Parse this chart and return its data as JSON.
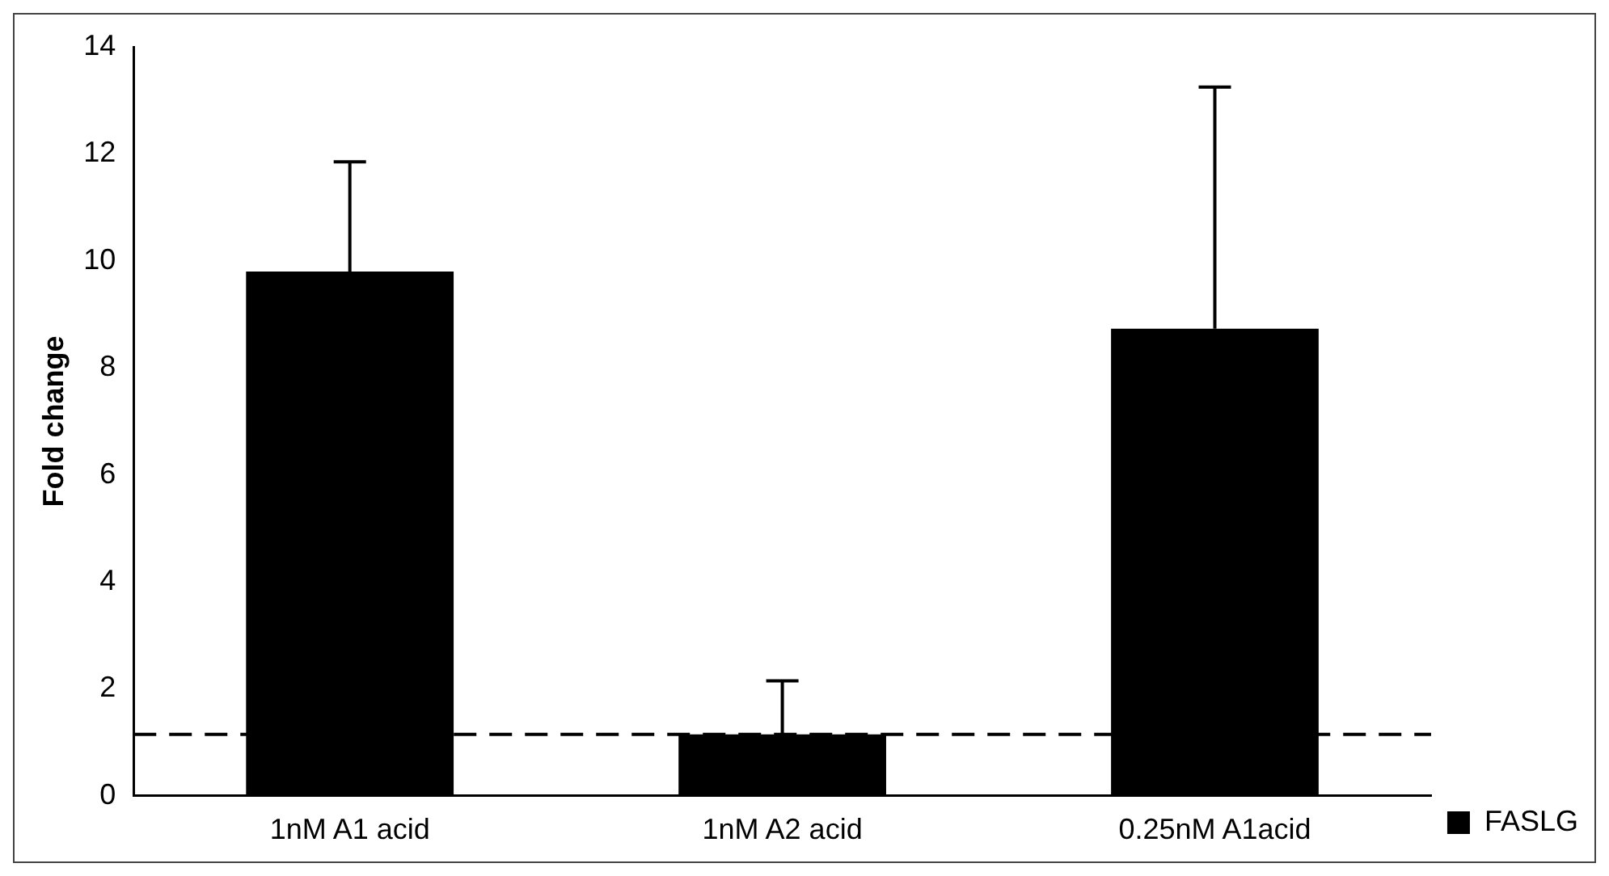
{
  "chart_data": {
    "type": "bar",
    "ylabel": "Fold change",
    "categories": [
      "1nM A1 acid",
      "1nM A2 acid",
      "0.25nM A1acid"
    ],
    "series": [
      {
        "name": "FASLG",
        "color": "#000000",
        "values": [
          9.8,
          1.15,
          8.73
        ],
        "errors": [
          [
            9.8,
            11.85
          ],
          [
            1.15,
            2.15
          ],
          [
            8.73,
            13.25
          ]
        ]
      }
    ],
    "ylim": [
      0,
      14
    ],
    "yticks": [
      0,
      2,
      4,
      6,
      8,
      10,
      12,
      14
    ],
    "grid": false,
    "legend": "bottom right",
    "ref_lines": [
      {
        "axis": "y",
        "value": 1.15,
        "color": "#000000",
        "line_style": "dashed"
      }
    ]
  }
}
